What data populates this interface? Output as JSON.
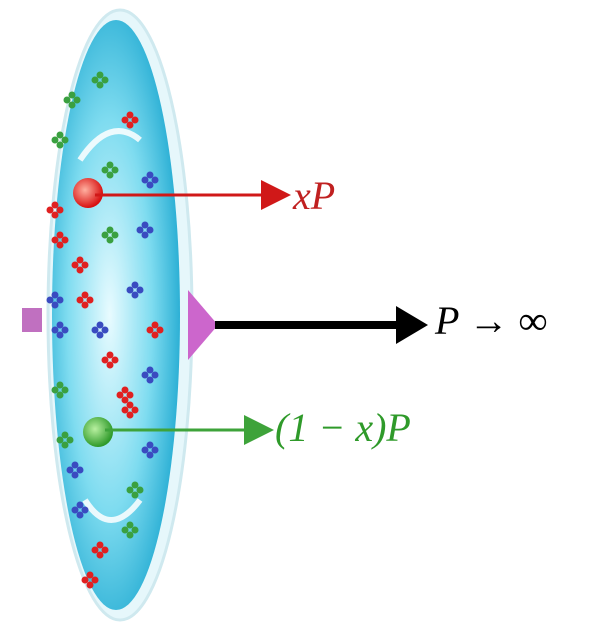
{
  "annotations": [
    {
      "text": "xP"
    },
    {
      "text": "P → ∞"
    },
    {
      "text": "(1 − x)P"
    }
  ]
}
